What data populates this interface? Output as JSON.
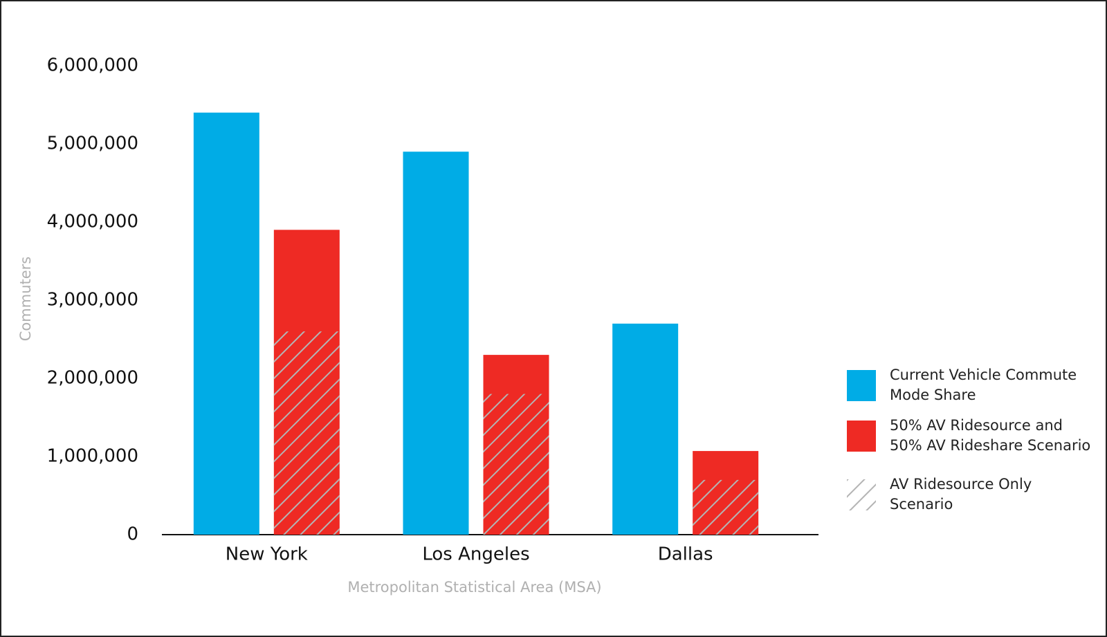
{
  "chart_data": {
    "type": "bar",
    "y_label": "Commuters",
    "x_label": "Metropolitan Statistical Area (MSA)",
    "categories": [
      "New York",
      "Los Angeles",
      "Dallas"
    ],
    "series": [
      {
        "name": "Current Vehicle Commute Mode Share",
        "color": "#00ace6",
        "values": [
          5400000,
          4900000,
          2700000
        ]
      },
      {
        "name": "50% AV Ridesource and 50% AV Rideshare Scenario",
        "color": "#ee2a24",
        "values": [
          3900000,
          2300000,
          1070000
        ]
      },
      {
        "name": "AV Ridesource Only Scenario",
        "color": "#b4b4b4",
        "hatch": true,
        "values": [
          2600000,
          1800000,
          700000
        ]
      }
    ],
    "ylim": [
      0,
      6000000
    ],
    "yticks": [
      0,
      {
        "value": 1000000,
        "label": "1,000,000"
      },
      {
        "value": 2000000,
        "label": "2,000,000"
      },
      {
        "value": 3000000,
        "label": "3,000,000"
      },
      {
        "value": 4000000,
        "label": "4,000,000"
      },
      {
        "value": 5000000,
        "label": "5,000,000"
      },
      {
        "value": 6000000,
        "label": "6,000,000"
      }
    ],
    "grid": false
  }
}
